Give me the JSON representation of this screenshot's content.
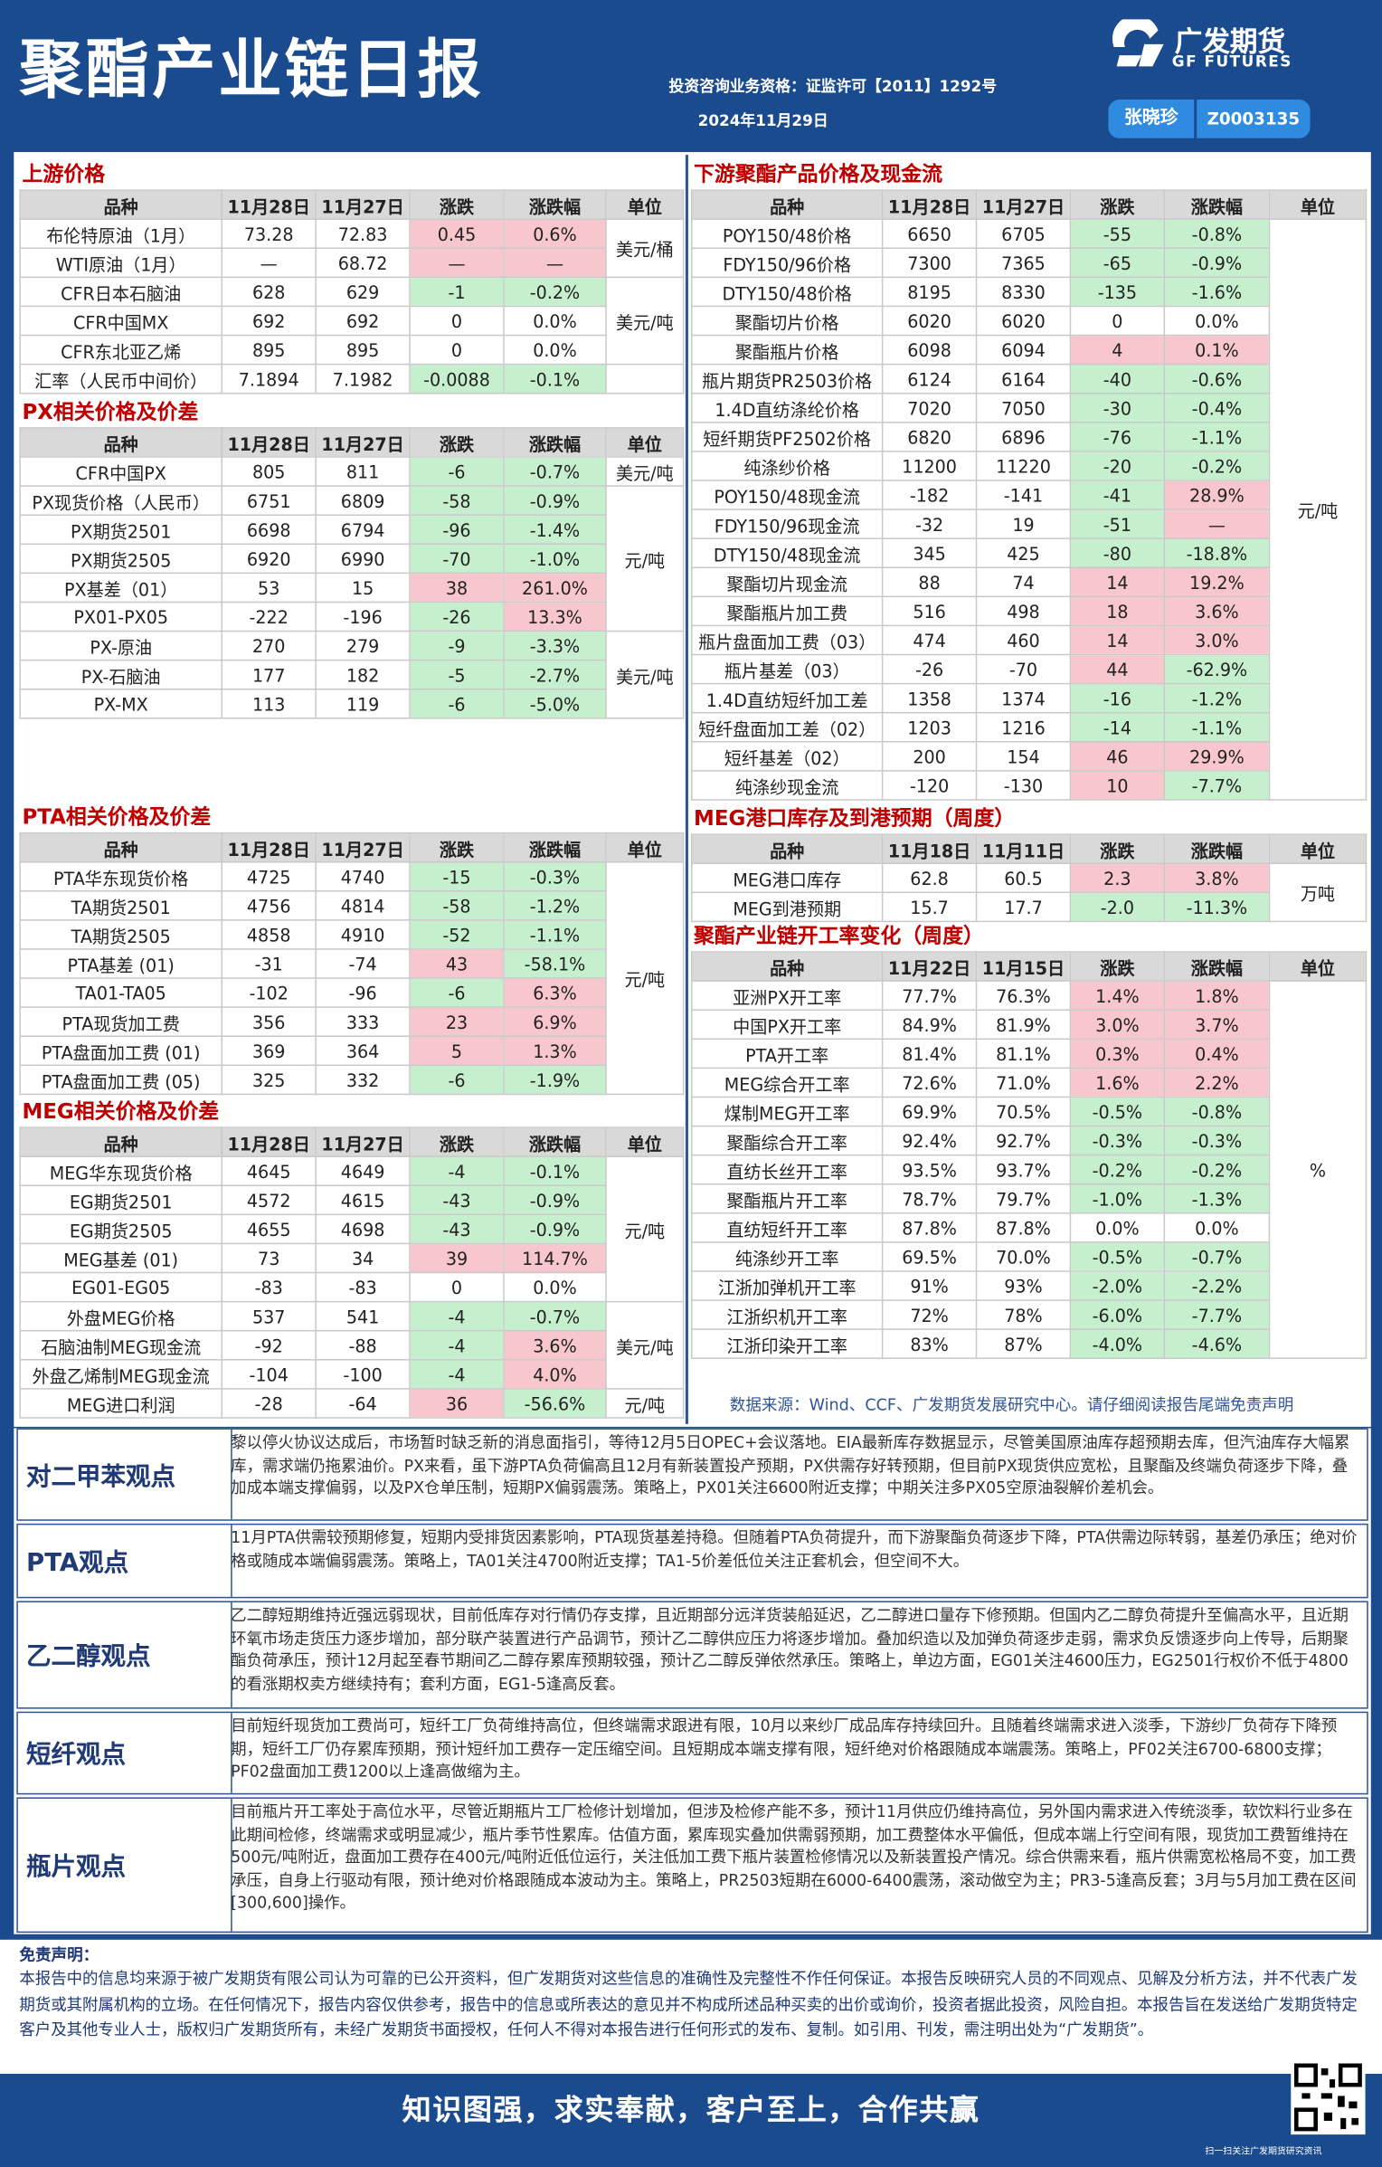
{
  "header": {
    "title": "聚酯产业链日报",
    "qualification": "投资咨询业务资格：证监许可【2011】1292号",
    "date": "2024年11月29日",
    "logo_cn": "广发期货",
    "logo_en": "GF FUTURES",
    "analyst": "张晓珍",
    "analyst_id": "Z0003135"
  },
  "tables": [
    {
      "title": "上游价格",
      "columns": [
        "品种",
        "11月28日",
        "11月27日",
        "涨跌",
        "涨跌幅",
        "单位"
      ],
      "groups": [
        {
          "unit": "美元/桶",
          "rows": [
            [
              "布伦特原油（1月）",
              "73.28",
              "72.83",
              "0.45",
              "0.6%"
            ],
            [
              "WTI原油（1月）",
              "—",
              "68.72",
              "—",
              "—"
            ]
          ]
        },
        {
          "unit": "美元/吨",
          "rows": [
            [
              "CFR日本石脑油",
              "628",
              "629",
              "-1",
              "-0.2%"
            ],
            [
              "CFR中国MX",
              "692",
              "692",
              "0",
              "0.0%"
            ],
            [
              "CFR东北亚乙烯",
              "895",
              "895",
              "0",
              "0.0%"
            ]
          ]
        },
        {
          "rows": [
            [
              "汇率（人民币中间价）",
              "7.1894",
              "7.1982",
              "-0.0088",
              "-0.1%"
            ]
          ]
        }
      ]
    },
    {
      "title": "PX相关价格及价差",
      "columns": [
        "品种",
        "11月28日",
        "11月27日",
        "涨跌",
        "涨跌幅",
        "单位"
      ],
      "groups": [
        {
          "unit": "美元/吨",
          "rows": [
            [
              "CFR中国PX",
              "805",
              "811",
              "-6",
              "-0.7%"
            ]
          ]
        },
        {
          "unit": "元/吨",
          "rows": [
            [
              "PX现货价格（人民币）",
              "6751",
              "6809",
              "-58",
              "-0.9%"
            ],
            [
              "PX期货2501",
              "6698",
              "6794",
              "-96",
              "-1.4%"
            ],
            [
              "PX期货2505",
              "6920",
              "6990",
              "-70",
              "-1.0%"
            ],
            [
              "PX基差（01）",
              "53",
              "15",
              "38",
              "261.0%"
            ],
            [
              "PX01-PX05",
              "-222",
              "-196",
              "-26",
              "13.3%"
            ]
          ]
        },
        {
          "unit": "美元/吨",
          "rows": [
            [
              "PX-原油",
              "270",
              "279",
              "-9",
              "-3.3%"
            ],
            [
              "PX-石脑油",
              "177",
              "182",
              "-5",
              "-2.7%"
            ],
            [
              "PX-MX",
              "113",
              "119",
              "-6",
              "-5.0%"
            ]
          ]
        }
      ]
    },
    {
      "title": "PTA相关价格及价差",
      "columns": [
        "品种",
        "11月28日",
        "11月27日",
        "涨跌",
        "涨跌幅",
        "单位"
      ],
      "groups": [
        {
          "unit": "元/吨",
          "rows": [
            [
              "PTA华东现货价格",
              "4725",
              "4740",
              "-15",
              "-0.3%"
            ],
            [
              "TA期货2501",
              "4756",
              "4814",
              "-58",
              "-1.2%"
            ],
            [
              "TA期货2505",
              "4858",
              "4910",
              "-52",
              "-1.1%"
            ],
            [
              "PTA基差 (01)",
              "-31",
              "-74",
              "43",
              "-58.1%"
            ],
            [
              "TA01-TA05",
              "-102",
              "-96",
              "-6",
              "6.3%"
            ],
            [
              "PTA现货加工费",
              "356",
              "333",
              "23",
              "6.9%"
            ],
            [
              "PTA盘面加工费 (01)",
              "369",
              "364",
              "5",
              "1.3%"
            ],
            [
              "PTA盘面加工费 (05)",
              "325",
              "332",
              "-6",
              "-1.9%"
            ]
          ]
        }
      ]
    },
    {
      "title": "MEG相关价格及价差",
      "columns": [
        "品种",
        "11月28日",
        "11月27日",
        "涨跌",
        "涨跌幅",
        "单位"
      ],
      "groups": [
        {
          "unit": "元/吨",
          "rows": [
            [
              "MEG华东现货价格",
              "4645",
              "4649",
              "-4",
              "-0.1%"
            ],
            [
              "EG期货2501",
              "4572",
              "4615",
              "-43",
              "-0.9%"
            ],
            [
              "EG期货2505",
              "4655",
              "4698",
              "-43",
              "-0.9%"
            ],
            [
              "MEG基差 (01)",
              "73",
              "34",
              "39",
              "114.7%"
            ],
            [
              "EG01-EG05",
              "-83",
              "-83",
              "0",
              "0.0%"
            ]
          ]
        },
        {
          "unit": "美元/吨",
          "rows": [
            [
              "外盘MEG价格",
              "537",
              "541",
              "-4",
              "-0.7%"
            ],
            [
              "石脑油制MEG现金流",
              "-92",
              "-88",
              "-4",
              "3.6%"
            ],
            [
              "外盘乙烯制MEG现金流",
              "-104",
              "-100",
              "-4",
              "4.0%"
            ]
          ]
        },
        {
          "unit": "元/吨",
          "rows": [
            [
              "MEG进口利润",
              "-28",
              "-64",
              "36",
              "-56.6%"
            ]
          ]
        }
      ]
    },
    {
      "title": "下游聚酯产品价格及现金流",
      "columns": [
        "品种",
        "11月28日",
        "11月27日",
        "涨跌",
        "涨跌幅",
        "单位"
      ],
      "groups": [
        {
          "unit": "元/吨",
          "rows": [
            [
              "POY150/48价格",
              "6650",
              "6705",
              "-55",
              "-0.8%"
            ],
            [
              "FDY150/96价格",
              "7300",
              "7365",
              "-65",
              "-0.9%"
            ],
            [
              "DTY150/48价格",
              "8195",
              "8330",
              "-135",
              "-1.6%"
            ],
            [
              "聚酯切片价格",
              "6020",
              "6020",
              "0",
              "0.0%"
            ],
            [
              "聚酯瓶片价格",
              "6098",
              "6094",
              "4",
              "0.1%"
            ],
            [
              "瓶片期货PR2503价格",
              "6124",
              "6164",
              "-40",
              "-0.6%"
            ],
            [
              "1.4D直纺涤纶价格",
              "7020",
              "7050",
              "-30",
              "-0.4%"
            ],
            [
              "短纤期货PF2502价格",
              "6820",
              "6896",
              "-76",
              "-1.1%"
            ],
            [
              "纯涤纱价格",
              "11200",
              "11220",
              "-20",
              "-0.2%"
            ],
            [
              "POY150/48现金流",
              "-182",
              "-141",
              "-41",
              "28.9%"
            ],
            [
              "FDY150/96现金流",
              "-32",
              "19",
              "-51",
              "—"
            ],
            [
              "DTY150/48现金流",
              "345",
              "425",
              "-80",
              "-18.8%"
            ],
            [
              "聚酯切片现金流",
              "88",
              "74",
              "14",
              "19.2%"
            ],
            [
              "聚酯瓶片加工费",
              "516",
              "498",
              "18",
              "3.6%"
            ],
            [
              "瓶片盘面加工费（03）",
              "474",
              "460",
              "14",
              "3.0%"
            ],
            [
              "瓶片基差（03）",
              "-26",
              "-70",
              "44",
              "-62.9%"
            ],
            [
              "1.4D直纺短纤加工差",
              "1358",
              "1374",
              "-16",
              "-1.2%"
            ],
            [
              "短纤盘面加工差（02）",
              "1203",
              "1216",
              "-14",
              "-1.1%"
            ],
            [
              "短纤基差（02）",
              "200",
              "154",
              "46",
              "29.9%"
            ],
            [
              "纯涤纱现金流",
              "-120",
              "-130",
              "10",
              "-7.7%"
            ]
          ]
        }
      ]
    },
    {
      "title": "MEG港口库存及到港预期（周度）",
      "columns": [
        "品种",
        "11月18日",
        "11月11日",
        "涨跌",
        "涨跌幅",
        "单位"
      ],
      "groups": [
        {
          "unit": "万吨",
          "rows": [
            [
              "MEG港口库存",
              "62.8",
              "60.5",
              "2.3",
              "3.8%"
            ],
            [
              "MEG到港预期",
              "15.7",
              "17.7",
              "-2.0",
              "-11.3%"
            ]
          ]
        }
      ]
    },
    {
      "title": "聚酯产业链开工率变化（周度）",
      "columns": [
        "品种",
        "11月22日",
        "11月15日",
        "涨跌",
        "涨跌幅",
        "单位"
      ],
      "groups": [
        {
          "unit": "%",
          "rows": [
            [
              "亚洲PX开工率",
              "77.7%",
              "76.3%",
              "1.4%",
              "1.8%"
            ],
            [
              "中国PX开工率",
              "84.9%",
              "81.9%",
              "3.0%",
              "3.7%"
            ],
            [
              "PTA开工率",
              "81.4%",
              "81.1%",
              "0.3%",
              "0.4%"
            ],
            [
              "MEG综合开工率",
              "72.6%",
              "71.0%",
              "1.6%",
              "2.2%"
            ],
            [
              "煤制MEG开工率",
              "69.9%",
              "70.5%",
              "-0.5%",
              "-0.8%"
            ],
            [
              "聚酯综合开工率",
              "92.4%",
              "92.7%",
              "-0.3%",
              "-0.3%"
            ],
            [
              "直纺长丝开工率",
              "93.5%",
              "93.7%",
              "-0.2%",
              "-0.2%"
            ],
            [
              "聚酯瓶片开工率",
              "78.7%",
              "79.7%",
              "-1.0%",
              "-1.3%"
            ],
            [
              "直纺短纤开工率",
              "87.8%",
              "87.8%",
              "0.0%",
              "0.0%"
            ],
            [
              "纯涤纱开工率",
              "69.5%",
              "70.0%",
              "-0.5%",
              "-0.7%"
            ],
            [
              "江浙加弹机开工率",
              "91%",
              "93%",
              "-2.0%",
              "-2.2%"
            ],
            [
              "江浙织机开工率",
              "72%",
              "78%",
              "-6.0%",
              "-7.7%"
            ],
            [
              "江浙印染开工率",
              "83%",
              "87%",
              "-4.0%",
              "-4.6%"
            ]
          ]
        }
      ]
    }
  ],
  "source": "数据来源：Wind、CCF、广发期货发展研究中心。请仔细阅读报告尾端免责声明",
  "opinions": [
    {
      "label": "对二甲苯观点",
      "text": "黎以停火协议达成后，市场暂时缺乏新的消息面指引，等待12月5日OPEC+会议落地。EIA最新库存数据显示，尽管美国原油库存超预期去库，但汽油库存大幅累库，需求端仍拖累油价。PX来看，虽下游PTA负荷偏高且12月有新装置投产预期，PX供需存好转预期，但目前PX现货供应宽松，且聚酯及终端负荷逐步下降，叠加成本端支撑偏弱，以及PX仓单压制，短期PX偏弱震荡。策略上，PX01关注6600附近支撑；中期关注多PX05空原油裂解价差机会。"
    },
    {
      "label": "PTA观点",
      "text": "11月PTA供需较预期修复，短期内受排货因素影响，PTA现货基差持稳。但随着PTA负荷提升，而下游聚酯负荷逐步下降，PTA供需边际转弱，基差仍承压；绝对价格或随成本端偏弱震荡。策略上，TA01关注4700附近支撑；TA1-5价差低位关注正套机会，但空间不大。"
    },
    {
      "label": "乙二醇观点",
      "text": "乙二醇短期维持近强远弱现状，目前低库存对行情仍存支撑，且近期部分远洋货装船延迟，乙二醇进口量存下修预期。但国内乙二醇负荷提升至偏高水平，且近期环氧市场走货压力逐步增加，部分联产装置进行产品调节，预计乙二醇供应压力将逐步增加。叠加织造以及加弹负荷逐步走弱，需求负反馈逐步向上传导，后期聚酯负荷承压，预计12月起至春节期间乙二醇存累库预期较强，预计乙二醇反弹依然承压。策略上，单边方面，EG01关注4600压力，EG2501行权价不低于4800的看涨期权卖方继续持有；套利方面，EG1-5逢高反套。"
    },
    {
      "label": "短纤观点",
      "text": "目前短纤现货加工费尚可，短纤工厂负荷维持高位，但终端需求跟进有限，10月以来纱厂成品库存持续回升。且随着终端需求进入淡季，下游纱厂负荷存下降预期，短纤工厂仍存累库预期，预计短纤加工费存一定压缩空间。且短期成本端支撑有限，短纤绝对价格跟随成本端震荡。策略上，PF02关注6700-6800支撑；PF02盘面加工费1200以上逢高做缩为主。"
    },
    {
      "label": "瓶片观点",
      "text": "目前瓶片开工率处于高位水平，尽管近期瓶片工厂检修计划增加，但涉及检修产能不多，预计11月供应仍维持高位，另外国内需求进入传统淡季，软饮料行业多在此期间检修，终端需求或明显减少，瓶片季节性累库。估值方面，累库现实叠加供需弱预期，加工费整体水平偏低，但成本端上行空间有限，现货加工费暂维持在500元/吨附近，盘面加工费存在400元/吨附近低位运行，关注低加工费下瓶片装置检修情况以及新装置投产情况。综合供需来看，瓶片供需宽松格局不变，加工费承压，自身上行驱动有限，预计绝对价格跟随成本波动为主。策略上，PR2503短期在6000-6400震荡，滚动做空为主；PR3-5逢高反套；3月与5月加工费在区间[300,600]操作。"
    }
  ],
  "disclaimer": {
    "title": "免责声明：",
    "text": "本报告中的信息均来源于被广发期货有限公司认为可靠的已公开资料，但广发期货对这些信息的准确性及完整性不作任何保证。本报告反映研究人员的不同观点、见解及分析方法，并不代表广发期货或其附属机构的立场。在任何情况下，报告内容仅供参考，报告中的信息或所表达的意见并不构成所述品种买卖的出价或询价，投资者据此投资，风险自担。本报告旨在发送给广发期货特定客户及其他专业人士，版权归广发期货所有，未经广发期货书面授权，任何人不得对本报告进行任何形式的发布、复制。如引用、刊发，需注明出处为“广发期货”。"
  },
  "footer": {
    "slogan": "知识图强，求实奉献，客户至上，合作共赢",
    "qr_caption": "扫一扫关注广发期货研究资讯"
  }
}
